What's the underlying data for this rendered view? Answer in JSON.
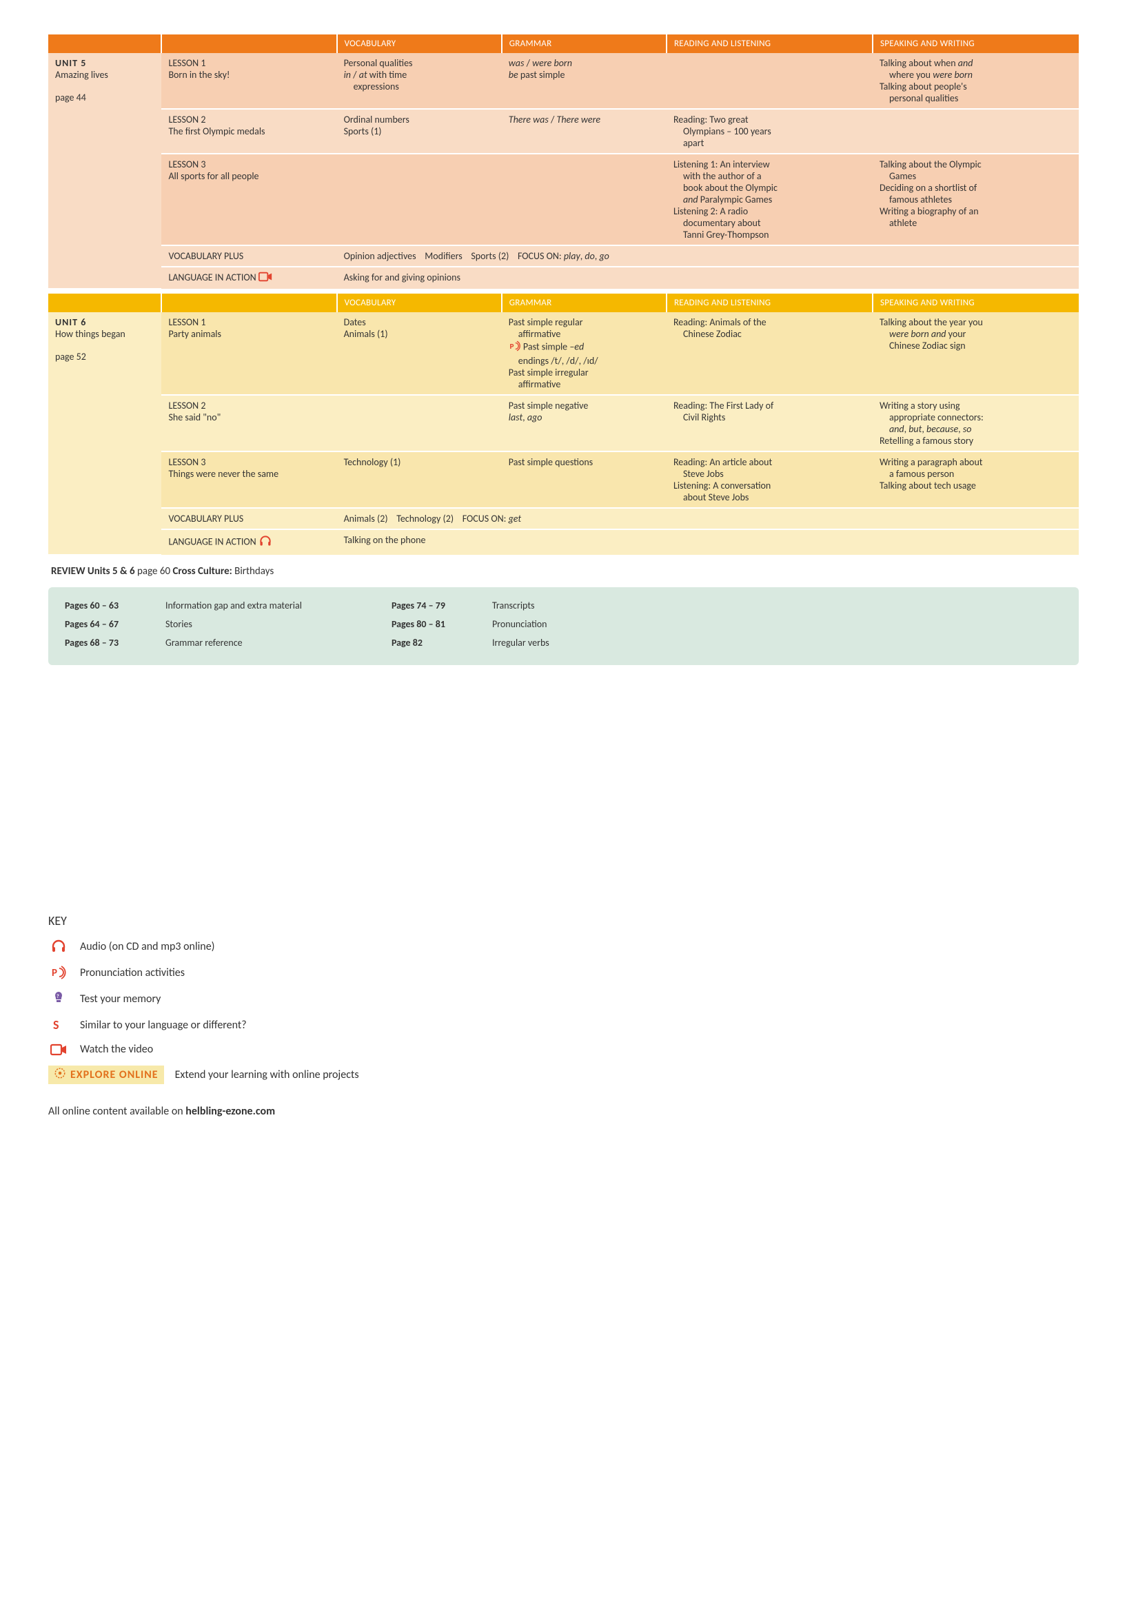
{
  "columns": {
    "vocab": "VOCABULARY",
    "grammar": "GRAMMAR",
    "reading": "READING AND LISTENING",
    "speaking": "SPEAKING AND WRITING"
  },
  "unit5": {
    "header_bg": "#ef7a1a",
    "body_bg": "#f9dcc5",
    "body_bg_alt": "#f7cfb2",
    "tag": "UNIT 5",
    "title": "Amazing lives",
    "page": "page 44",
    "lessons": [
      {
        "name": "LESSON 1",
        "subtitle": "Born in the sky!",
        "vocab": "Personal qualities\nin / at with time\n  expressions",
        "grammar": "was / were born\nbe past simple",
        "reading": "",
        "speaking": "Talking about when and\n  where you were born\nTalking about people's\n  personal qualities"
      },
      {
        "name": "LESSON 2",
        "subtitle": "The first Olympic medals",
        "vocab": "Ordinal numbers\nSports (1)",
        "grammar": "There was / There were",
        "reading": "Reading: Two great\n  Olympians – 100 years\n  apart",
        "speaking": ""
      },
      {
        "name": "LESSON 3",
        "subtitle": "All sports for all people",
        "vocab": "",
        "grammar": "",
        "reading": "Listening 1: An interview\n  with the author of a\n  book about the Olympic\n  and Paralympic Games\nListening 2: A radio\n  documentary about\n  Tanni Grey-Thompson",
        "speaking": "Talking about the Olympic\n  Games\nDeciding on a shortlist of\n  famous athletes\nWriting a biography of an\n  athlete"
      }
    ],
    "vocab_plus_label": "VOCABULARY PLUS",
    "vocab_plus_text": "Opinion adjectives    Modifiers    Sports (2)    FOCUS ON: play, do, go",
    "lang_label": "LANGUAGE IN ACTION",
    "lang_text": "Asking for and giving opinions",
    "lang_icon": "video"
  },
  "unit6": {
    "header_bg": "#f5b800",
    "body_bg": "#fbeec3",
    "body_bg_alt": "#f9e6ad",
    "tag": "UNIT 6",
    "title": "How things began",
    "page": "page 52",
    "lessons": [
      {
        "name": "LESSON 1",
        "subtitle": "Party animals",
        "vocab": "Dates\nAnimals (1)",
        "grammar_pre": "Past simple regular\n  affirmative",
        "grammar_icon": "pronunciation",
        "grammar_icon_text": "Past simple –ed\n  endings /t/, /d/, /ɪd/",
        "grammar_post": "Past simple irregular\n  affirmative",
        "reading": "Reading: Animals of the\n  Chinese Zodiac",
        "speaking": "Talking about the year you\n  were born and your\n  Chinese Zodiac sign"
      },
      {
        "name": "LESSON 2",
        "subtitle": "She said \"no\"",
        "vocab": "",
        "grammar": "Past simple negative\nlast, ago",
        "reading": "Reading: The First Lady of\n  Civil Rights",
        "speaking": "Writing a story using\n  appropriate connectors:\n  and, but, because, so\nRetelling a famous story"
      },
      {
        "name": "LESSON 3",
        "subtitle": "Things were never the same",
        "vocab": "Technology (1)",
        "grammar": "Past simple questions",
        "reading": "Reading: An article about\n  Steve Jobs\nListening: A conversation\n  about Steve Jobs",
        "speaking": "Writing a paragraph about\n  a famous person\nTalking about tech usage"
      }
    ],
    "vocab_plus_label": "VOCABULARY PLUS",
    "vocab_plus_text": "Animals (2)    Technology (2)    FOCUS ON: get",
    "lang_label": "LANGUAGE IN ACTION",
    "lang_text": "Talking on the phone",
    "lang_icon": "audio"
  },
  "review": {
    "prefix": "REVIEW Units 5 & 6",
    "page": "page 60",
    "cross_label": "Cross Culture:",
    "cross_text": "Birthdays"
  },
  "appendix": {
    "bg": "#d9e9e0",
    "left": [
      {
        "pg": "Pages  60 – 63",
        "txt": "Information gap and extra material"
      },
      {
        "pg": "Pages  64 – 67",
        "txt": "Stories"
      },
      {
        "pg": "Pages  68 – 73",
        "txt": "Grammar reference"
      }
    ],
    "right": [
      {
        "pg": "Pages  74 – 79",
        "txt": "Transcripts"
      },
      {
        "pg": "Pages  80 – 81",
        "txt": "Pronunciation"
      },
      {
        "pg": "Page   82",
        "txt": "Irregular verbs"
      }
    ]
  },
  "key": {
    "title": "KEY",
    "items": [
      {
        "icon": "audio",
        "text": "Audio (on CD and mp3 online)"
      },
      {
        "icon": "pronunciation",
        "text": "Pronunciation activities"
      },
      {
        "icon": "memory",
        "text": "Test your memory"
      },
      {
        "icon": "similar",
        "text": "Similar to your language or different?"
      },
      {
        "icon": "video",
        "text": "Watch the video"
      }
    ],
    "explore_label": "EXPLORE ONLINE",
    "explore_text": "Extend your learning with online projects"
  },
  "footer": {
    "pre": "All online content available on ",
    "bold": "helbling-ezone.com"
  },
  "icon_colors": {
    "audio": "#e2432f",
    "pronunciation": "#e2432f",
    "memory": "#7a5ba6",
    "similar": "#e2432f",
    "video": "#e2432f",
    "explore_star": "#e2711d"
  }
}
